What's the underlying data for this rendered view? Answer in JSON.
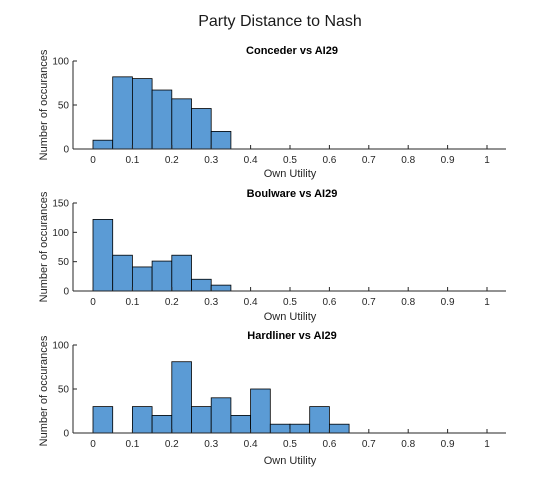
{
  "figure": {
    "title": "Party Distance to Nash"
  },
  "colors": {
    "bar_fill": "#5b9bd5",
    "bar_stroke": "#000000",
    "axis": "#262626"
  },
  "chart_data": [
    {
      "type": "bar",
      "title": "Conceder vs AI29",
      "xlabel": "Own Utility",
      "ylabel": "Number of occurances",
      "bin_width": 0.05,
      "bin_starts": [
        0,
        0.05,
        0.1,
        0.15,
        0.2,
        0.25,
        0.3
      ],
      "values": [
        10,
        82,
        80,
        67,
        57,
        46,
        20
      ],
      "xlim": [
        0,
        1
      ],
      "ylim": [
        0,
        100
      ],
      "xticks": [
        "0",
        "0.1",
        "0.2",
        "0.3",
        "0.4",
        "0.5",
        "0.6",
        "0.7",
        "0.8",
        "0.9",
        "1"
      ],
      "yticks": [
        "0",
        "50",
        "100"
      ],
      "ytick_values": [
        0,
        50,
        100
      ],
      "grid": false
    },
    {
      "type": "bar",
      "title": "Boulware vs AI29",
      "xlabel": "Own Utility",
      "ylabel": "Number of occurances",
      "bin_width": 0.05,
      "bin_starts": [
        0,
        0.05,
        0.1,
        0.15,
        0.2,
        0.25,
        0.3
      ],
      "values": [
        122,
        61,
        41,
        51,
        61,
        20,
        10
      ],
      "xlim": [
        0,
        1
      ],
      "ylim": [
        0,
        150
      ],
      "xticks": [
        "0",
        "0.1",
        "0.2",
        "0.3",
        "0.4",
        "0.5",
        "0.6",
        "0.7",
        "0.8",
        "0.9",
        "1"
      ],
      "yticks": [
        "0",
        "50",
        "100",
        "150"
      ],
      "ytick_values": [
        0,
        50,
        100,
        150
      ],
      "grid": false
    },
    {
      "type": "bar",
      "title": "Hardliner vs AI29",
      "xlabel": "Own Utility",
      "ylabel": "Number of occurances",
      "bin_width": 0.05,
      "bin_starts": [
        0,
        0.05,
        0.1,
        0.15,
        0.2,
        0.25,
        0.3,
        0.35,
        0.4,
        0.45,
        0.5,
        0.55,
        0.6
      ],
      "values": [
        30,
        0,
        30,
        20,
        81,
        30,
        40,
        20,
        50,
        10,
        10,
        30,
        10
      ],
      "xlim": [
        0,
        1
      ],
      "ylim": [
        0,
        100
      ],
      "xticks": [
        "0",
        "0.1",
        "0.2",
        "0.3",
        "0.4",
        "0.5",
        "0.6",
        "0.7",
        "0.8",
        "0.9",
        "1"
      ],
      "yticks": [
        "0",
        "50",
        "100"
      ],
      "ytick_values": [
        0,
        50,
        100
      ],
      "grid": false
    }
  ]
}
